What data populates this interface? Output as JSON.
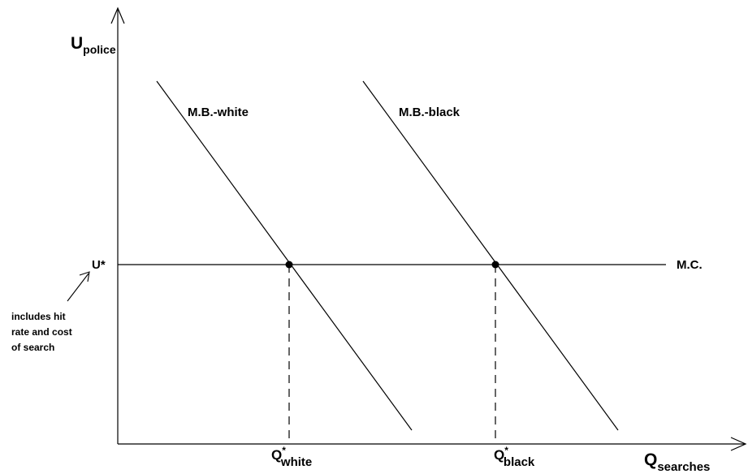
{
  "y_axis": {
    "label_main": "U",
    "label_sub": "police"
  },
  "x_axis": {
    "label_main": "Q",
    "label_sub": "searches"
  },
  "curves": {
    "mb_white": "M.B.-white",
    "mb_black": "M.B.-black",
    "mc": "M.C."
  },
  "u_star": "U*",
  "q_white": {
    "main": "Q",
    "sup": "*",
    "sub": "white"
  },
  "q_black": {
    "main": "Q",
    "sup": "*",
    "sub": "black"
  },
  "annotation": {
    "line1": "includes hit",
    "line2": "rate and cost",
    "line3": "of search"
  }
}
